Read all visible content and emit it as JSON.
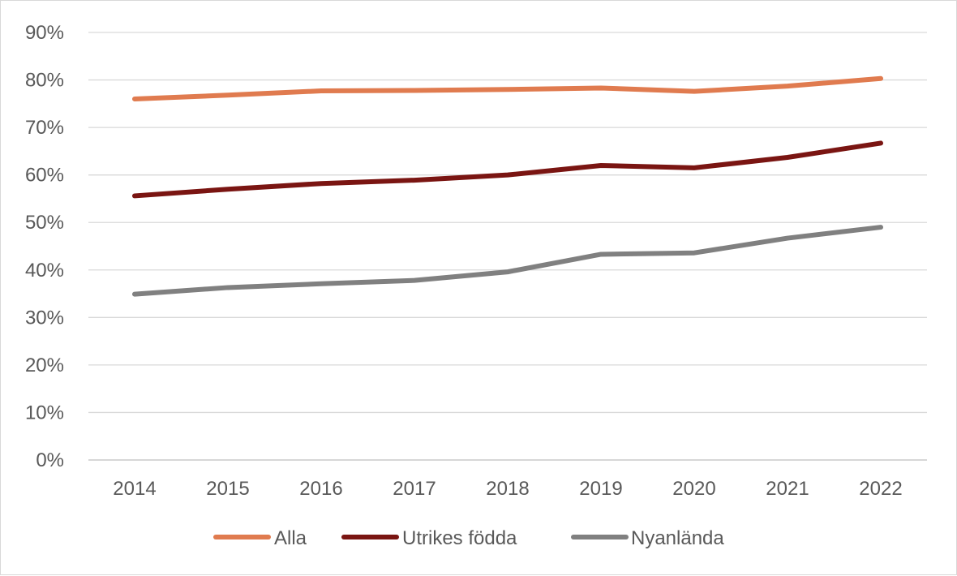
{
  "chart_data": {
    "type": "line",
    "x": [
      "2014",
      "2015",
      "2016",
      "2017",
      "2018",
      "2019",
      "2020",
      "2021",
      "2022"
    ],
    "y_ticks": [
      "0%",
      "10%",
      "20%",
      "30%",
      "40%",
      "50%",
      "60%",
      "70%",
      "80%",
      "90%"
    ],
    "ylim": [
      0,
      90
    ],
    "yunit": "%",
    "grid": true,
    "legend_position": "bottom",
    "series": [
      {
        "name": "Alla",
        "color": "#e07b4f",
        "values": [
          76.0,
          76.8,
          77.7,
          77.8,
          78.0,
          78.3,
          77.6,
          78.7,
          80.3
        ]
      },
      {
        "name": "Utrikes födda",
        "color": "#7a1512",
        "values": [
          55.6,
          57.0,
          58.2,
          58.9,
          60.0,
          62.0,
          61.5,
          63.7,
          66.7
        ]
      },
      {
        "name": "Nyanlända",
        "color": "#808080",
        "values": [
          34.9,
          36.3,
          37.1,
          37.8,
          39.6,
          43.3,
          43.6,
          46.7,
          49.0
        ]
      }
    ]
  }
}
